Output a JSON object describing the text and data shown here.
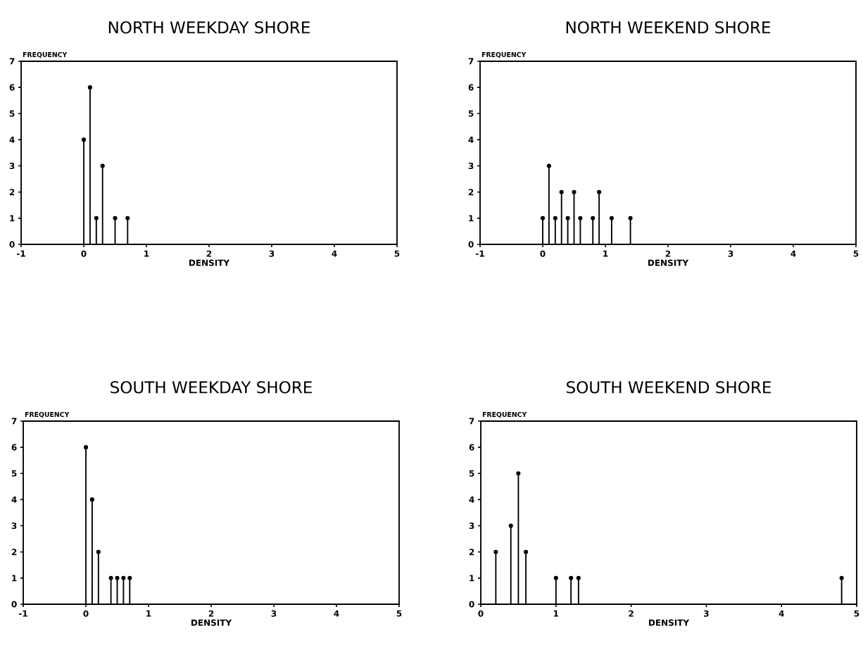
{
  "chart_data": [
    {
      "type": "lollipop",
      "title": "NORTH WEEKDAY SHORE",
      "xlabel": "DENSITY",
      "ylabel": "FREQUENCY",
      "x": [
        0,
        0.1,
        0.2,
        0.3,
        0.5,
        0.7
      ],
      "values": [
        4,
        6,
        1,
        3,
        1,
        1
      ],
      "color": "#000000",
      "marker": "circle",
      "xlim": [
        -1,
        5
      ],
      "xticks": [
        -1,
        0,
        1,
        2,
        3,
        4,
        5
      ],
      "ylim": [
        0,
        7
      ],
      "yticks": [
        0,
        1,
        2,
        3,
        4,
        5,
        6,
        7
      ]
    },
    {
      "type": "lollipop",
      "title": "NORTH WEEKEND SHORE",
      "xlabel": "DENSITY",
      "ylabel": "FREQUENCY",
      "x": [
        0,
        0.1,
        0.2,
        0.3,
        0.4,
        0.5,
        0.6,
        0.8,
        0.9,
        1.1,
        1.4
      ],
      "values": [
        1,
        3,
        1,
        2,
        1,
        2,
        1,
        1,
        2,
        1,
        1
      ],
      "color": "#000000",
      "marker": "circle",
      "xlim": [
        -1,
        5
      ],
      "xticks": [
        -1,
        0,
        1,
        2,
        3,
        4,
        5
      ],
      "ylim": [
        0,
        7
      ],
      "yticks": [
        0,
        1,
        2,
        3,
        4,
        5,
        6,
        7
      ]
    },
    {
      "type": "lollipop",
      "title": "SOUTH WEEKDAY SHORE",
      "xlabel": "DENSITY",
      "ylabel": "FREQUENCY",
      "x": [
        0,
        0.1,
        0.2,
        0.4,
        0.5,
        0.6,
        0.7
      ],
      "values": [
        6,
        4,
        2,
        1,
        1,
        1,
        1
      ],
      "color": "#000000",
      "marker": "circle",
      "xlim": [
        -1,
        5
      ],
      "xticks": [
        -1,
        0,
        1,
        2,
        3,
        4,
        5
      ],
      "ylim": [
        0,
        7
      ],
      "yticks": [
        0,
        1,
        2,
        3,
        4,
        5,
        6,
        7
      ]
    },
    {
      "type": "lollipop",
      "title": "SOUTH WEEKEND SHORE",
      "xlabel": "DENSITY",
      "ylabel": "FREQUENCY",
      "x": [
        0.2,
        0.4,
        0.5,
        0.6,
        1.0,
        1.2,
        1.3,
        4.8
      ],
      "values": [
        2,
        3,
        5,
        2,
        1,
        1,
        1,
        1
      ],
      "color": "#000000",
      "marker": "circle",
      "xlim": [
        0,
        5
      ],
      "xticks": [
        0,
        1,
        2,
        3,
        4,
        5
      ],
      "ylim": [
        0,
        7
      ],
      "yticks": [
        0,
        1,
        2,
        3,
        4,
        5,
        6,
        7
      ]
    }
  ]
}
